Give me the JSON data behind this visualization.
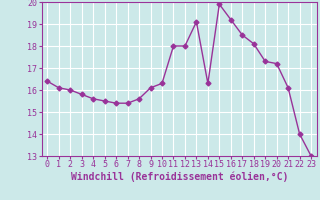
{
  "x": [
    0,
    1,
    2,
    3,
    4,
    5,
    6,
    7,
    8,
    9,
    10,
    11,
    12,
    13,
    14,
    15,
    16,
    17,
    18,
    19,
    20,
    21,
    22,
    23
  ],
  "y": [
    16.4,
    16.1,
    16.0,
    15.8,
    15.6,
    15.5,
    15.4,
    15.4,
    15.6,
    16.1,
    16.3,
    18.0,
    18.0,
    19.1,
    16.3,
    19.9,
    19.2,
    18.5,
    18.1,
    17.3,
    17.2,
    16.1,
    14.0,
    13.0
  ],
  "line_color": "#993399",
  "marker": "D",
  "markersize": 2.5,
  "linewidth": 1.0,
  "xlabel": "Windchill (Refroidissement éolien,°C)",
  "ylim": [
    13,
    20
  ],
  "xlim": [
    -0.5,
    23.5
  ],
  "yticks": [
    13,
    14,
    15,
    16,
    17,
    18,
    19,
    20
  ],
  "xticks": [
    0,
    1,
    2,
    3,
    4,
    5,
    6,
    7,
    8,
    9,
    10,
    11,
    12,
    13,
    14,
    15,
    16,
    17,
    18,
    19,
    20,
    21,
    22,
    23
  ],
  "xtick_labels": [
    "0",
    "1",
    "2",
    "3",
    "4",
    "5",
    "6",
    "7",
    "8",
    "9",
    "10",
    "11",
    "12",
    "13",
    "14",
    "15",
    "16",
    "17",
    "18",
    "19",
    "20",
    "21",
    "22",
    "23"
  ],
  "background_color": "#cce9e9",
  "grid_color": "#ffffff",
  "tick_color": "#993399",
  "label_color": "#993399",
  "tick_fontsize": 6,
  "xlabel_fontsize": 7
}
